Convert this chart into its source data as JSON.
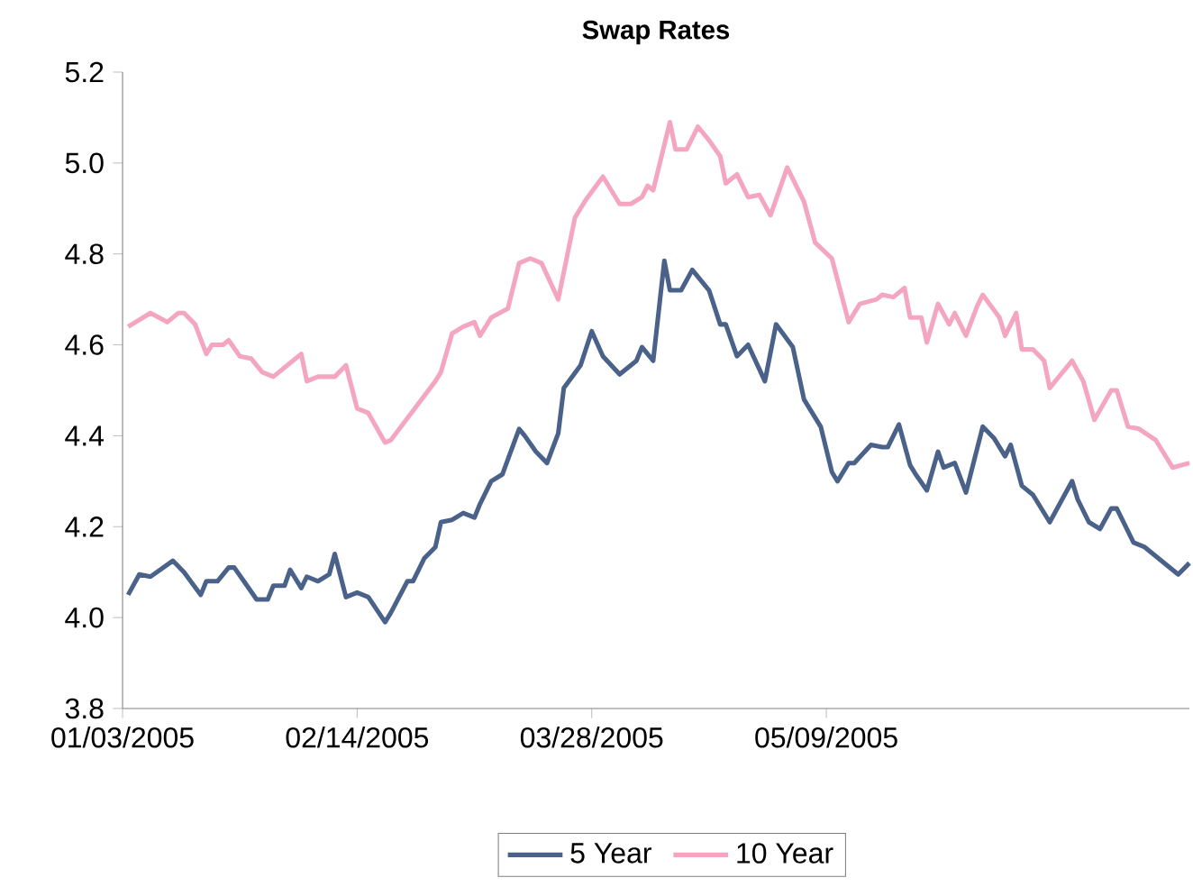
{
  "chart_data": {
    "type": "line",
    "title": "Swap Rates",
    "ylim": [
      3.8,
      5.2
    ],
    "yticks": [
      {
        "value": 3.8,
        "label": "3.8"
      },
      {
        "value": 4.0,
        "label": "4.0"
      },
      {
        "value": 4.2,
        "label": "4.2"
      },
      {
        "value": 4.4,
        "label": "4.4"
      },
      {
        "value": 4.6,
        "label": "4.6"
      },
      {
        "value": 4.8,
        "label": "4.8"
      },
      {
        "value": 5.0,
        "label": "5.0"
      },
      {
        "value": 5.2,
        "label": "5.2"
      }
    ],
    "xlim": [
      "2005-01-03",
      "2005-07-13"
    ],
    "xticks": [
      {
        "value": "2005-01-03",
        "label": "01/03/2005"
      },
      {
        "value": "2005-02-14",
        "label": "02/14/2005"
      },
      {
        "value": "2005-03-28",
        "label": "03/28/2005"
      },
      {
        "value": "2005-05-09",
        "label": "05/09/2005"
      }
    ],
    "grid": false,
    "legend": "bottom",
    "marker": "none",
    "line_style": "solid",
    "series": [
      {
        "name": "5 Year",
        "color": "#4a6289",
        "x": [
          "2005-01-04",
          "2005-01-06",
          "2005-01-08",
          "2005-01-12",
          "2005-01-14",
          "2005-01-17",
          "2005-01-18",
          "2005-01-20",
          "2005-01-22",
          "2005-01-23",
          "2005-01-25",
          "2005-01-27",
          "2005-01-29",
          "2005-01-30",
          "2005-02-01",
          "2005-02-02",
          "2005-02-04",
          "2005-02-05",
          "2005-02-07",
          "2005-02-09",
          "2005-02-10",
          "2005-02-12",
          "2005-02-14",
          "2005-02-16",
          "2005-02-19",
          "2005-02-20",
          "2005-02-23",
          "2005-02-24",
          "2005-02-26",
          "2005-02-28",
          "2005-03-01",
          "2005-03-03",
          "2005-03-05",
          "2005-03-07",
          "2005-03-08",
          "2005-03-10",
          "2005-03-12",
          "2005-03-15",
          "2005-03-16",
          "2005-03-18",
          "2005-03-20",
          "2005-03-22",
          "2005-03-23",
          "2005-03-26",
          "2005-03-28",
          "2005-03-30",
          "2005-04-02",
          "2005-04-05",
          "2005-04-06",
          "2005-04-08",
          "2005-04-10",
          "2005-04-11",
          "2005-04-13",
          "2005-04-15",
          "2005-04-18",
          "2005-04-20",
          "2005-04-21",
          "2005-04-23",
          "2005-04-25",
          "2005-04-28",
          "2005-04-30",
          "2005-05-03",
          "2005-05-05",
          "2005-05-08",
          "2005-05-10",
          "2005-05-11",
          "2005-05-13",
          "2005-05-14",
          "2005-05-17",
          "2005-05-19",
          "2005-05-20",
          "2005-05-22",
          "2005-05-24",
          "2005-05-25",
          "2005-05-27",
          "2005-05-29",
          "2005-05-30",
          "2005-06-01",
          "2005-06-03",
          "2005-06-06",
          "2005-06-08",
          "2005-06-10",
          "2005-06-11",
          "2005-06-13",
          "2005-06-15",
          "2005-06-18",
          "2005-06-22",
          "2005-06-23",
          "2005-06-25",
          "2005-06-27",
          "2005-06-29",
          "2005-06-30",
          "2005-07-03",
          "2005-07-05",
          "2005-07-11",
          "2005-07-13"
        ],
        "values": [
          4.05,
          4.095,
          4.09,
          4.125,
          4.1,
          4.05,
          4.08,
          4.08,
          4.11,
          4.11,
          4.075,
          4.04,
          4.04,
          4.07,
          4.07,
          4.105,
          4.065,
          4.09,
          4.08,
          4.095,
          4.14,
          4.045,
          4.055,
          4.045,
          3.99,
          4.01,
          4.08,
          4.08,
          4.13,
          4.155,
          4.21,
          4.215,
          4.23,
          4.22,
          4.25,
          4.3,
          4.315,
          4.415,
          4.4,
          4.365,
          4.34,
          4.405,
          4.505,
          4.555,
          4.63,
          4.575,
          4.535,
          4.565,
          4.595,
          4.565,
          4.785,
          4.72,
          4.72,
          4.765,
          4.72,
          4.645,
          4.645,
          4.575,
          4.6,
          4.52,
          4.645,
          4.595,
          4.48,
          4.42,
          4.32,
          4.3,
          4.34,
          4.34,
          4.38,
          4.375,
          4.375,
          4.425,
          4.335,
          4.315,
          4.28,
          4.365,
          4.33,
          4.34,
          4.275,
          4.42,
          4.395,
          4.355,
          4.38,
          4.29,
          4.27,
          4.21,
          4.3,
          4.26,
          4.21,
          4.195,
          4.24,
          4.24,
          4.165,
          4.155,
          4.095,
          4.12
        ]
      },
      {
        "name": "10 Year",
        "color": "#f4a6c0",
        "x": [
          "2005-01-04",
          "2005-01-08",
          "2005-01-11",
          "2005-01-13",
          "2005-01-14",
          "2005-01-16",
          "2005-01-18",
          "2005-01-19",
          "2005-01-21",
          "2005-01-22",
          "2005-01-24",
          "2005-01-26",
          "2005-01-28",
          "2005-01-30",
          "2005-02-02",
          "2005-02-04",
          "2005-02-05",
          "2005-02-07",
          "2005-02-10",
          "2005-02-12",
          "2005-02-14",
          "2005-02-16",
          "2005-02-19",
          "2005-02-20",
          "2005-02-24",
          "2005-02-28",
          "2005-03-01",
          "2005-03-03",
          "2005-03-05",
          "2005-03-07",
          "2005-03-08",
          "2005-03-10",
          "2005-03-13",
          "2005-03-15",
          "2005-03-17",
          "2005-03-19",
          "2005-03-22",
          "2005-03-25",
          "2005-03-27",
          "2005-03-30",
          "2005-04-02",
          "2005-04-04",
          "2005-04-06",
          "2005-04-07",
          "2005-04-08",
          "2005-04-11",
          "2005-04-12",
          "2005-04-14",
          "2005-04-16",
          "2005-04-18",
          "2005-04-20",
          "2005-04-21",
          "2005-04-23",
          "2005-04-25",
          "2005-04-27",
          "2005-04-29",
          "2005-05-02",
          "2005-05-05",
          "2005-05-07",
          "2005-05-10",
          "2005-05-13",
          "2005-05-15",
          "2005-05-18",
          "2005-05-19",
          "2005-05-21",
          "2005-05-23",
          "2005-05-24",
          "2005-05-26",
          "2005-05-27",
          "2005-05-29",
          "2005-05-31",
          "2005-06-01",
          "2005-06-03",
          "2005-06-05",
          "2005-06-06",
          "2005-06-09",
          "2005-06-10",
          "2005-06-12",
          "2005-06-13",
          "2005-06-15",
          "2005-06-17",
          "2005-06-18",
          "2005-06-22",
          "2005-06-24",
          "2005-06-26",
          "2005-06-29",
          "2005-06-30",
          "2005-07-02",
          "2005-07-04",
          "2005-07-07",
          "2005-07-10",
          "2005-07-13"
        ],
        "values": [
          4.64,
          4.67,
          4.65,
          4.67,
          4.67,
          4.645,
          4.58,
          4.6,
          4.6,
          4.61,
          4.575,
          4.57,
          4.54,
          4.53,
          4.56,
          4.58,
          4.52,
          4.53,
          4.53,
          4.555,
          4.46,
          4.45,
          4.385,
          4.39,
          4.455,
          4.52,
          4.54,
          4.625,
          4.64,
          4.65,
          4.62,
          4.66,
          4.68,
          4.78,
          4.79,
          4.78,
          4.7,
          4.88,
          4.92,
          4.97,
          4.91,
          4.91,
          4.925,
          4.95,
          4.94,
          5.09,
          5.03,
          5.03,
          5.08,
          5.05,
          5.015,
          4.955,
          4.975,
          4.925,
          4.93,
          4.885,
          4.99,
          4.915,
          4.825,
          4.79,
          4.65,
          4.69,
          4.7,
          4.71,
          4.705,
          4.725,
          4.66,
          4.66,
          4.605,
          4.69,
          4.645,
          4.67,
          4.62,
          4.685,
          4.71,
          4.66,
          4.62,
          4.67,
          4.59,
          4.59,
          4.565,
          4.505,
          4.565,
          4.52,
          4.435,
          4.5,
          4.5,
          4.42,
          4.415,
          4.39,
          4.33,
          4.34
        ]
      }
    ]
  }
}
